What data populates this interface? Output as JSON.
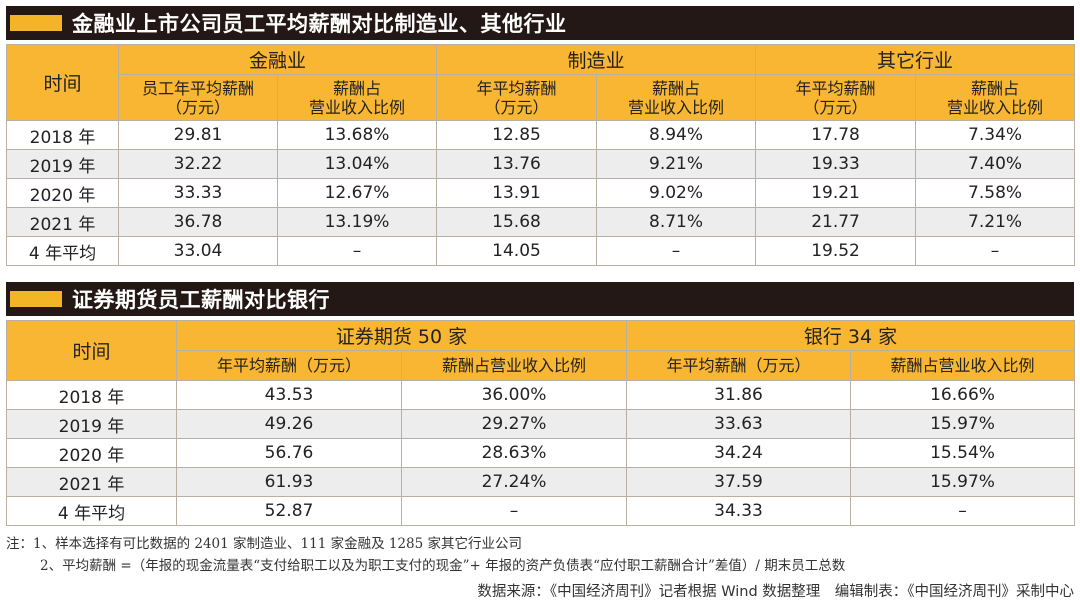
{
  "chart_data": [
    {
      "type": "table",
      "title": "金融业上市公司员工平均薪酬对比制造业、其他行业",
      "time_header": "时间",
      "groups": [
        {
          "name": "金融业",
          "columns": [
            "员工年平均薪酬\n（万元）",
            "薪酬占\n营业收入比例"
          ]
        },
        {
          "name": "制造业",
          "columns": [
            "年平均薪酬\n（万元）",
            "薪酬占\n营业收入比例"
          ]
        },
        {
          "name": "其它行业",
          "columns": [
            "年平均薪酬\n（万元）",
            "薪酬占\n营业收入比例"
          ]
        }
      ],
      "rows": [
        {
          "time": "2018 年",
          "values": [
            "29.81",
            "13.68%",
            "12.85",
            "8.94%",
            "17.78",
            "7.34%"
          ]
        },
        {
          "time": "2019 年",
          "values": [
            "32.22",
            "13.04%",
            "13.76",
            "9.21%",
            "19.33",
            "7.40%"
          ]
        },
        {
          "time": "2020 年",
          "values": [
            "33.33",
            "12.67%",
            "13.91",
            "9.02%",
            "19.21",
            "7.58%"
          ]
        },
        {
          "time": "2021 年",
          "values": [
            "36.78",
            "13.19%",
            "15.68",
            "8.71%",
            "21.77",
            "7.21%"
          ]
        },
        {
          "time": "4 年平均",
          "values": [
            "33.04",
            "–",
            "14.05",
            "–",
            "19.52",
            "–"
          ]
        }
      ]
    },
    {
      "type": "table",
      "title": "证券期货员工薪酬对比银行",
      "time_header": "时间",
      "groups": [
        {
          "name": "证券期货 50 家",
          "columns": [
            "年平均薪酬（万元）",
            "薪酬占营业收入比例"
          ]
        },
        {
          "name": "银行 34 家",
          "columns": [
            "年平均薪酬（万元）",
            "薪酬占营业收入比例"
          ]
        }
      ],
      "rows": [
        {
          "time": "2018 年",
          "values": [
            "43.53",
            "36.00%",
            "31.86",
            "16.66%"
          ]
        },
        {
          "time": "2019 年",
          "values": [
            "49.26",
            "29.27%",
            "33.63",
            "15.97%"
          ]
        },
        {
          "time": "2020 年",
          "values": [
            "56.76",
            "28.63%",
            "34.24",
            "15.54%"
          ]
        },
        {
          "time": "2021 年",
          "values": [
            "61.93",
            "27.24%",
            "37.59",
            "15.97%"
          ]
        },
        {
          "time": "4 年平均",
          "values": [
            "52.87",
            "–",
            "34.33",
            "–"
          ]
        }
      ]
    }
  ],
  "notes": {
    "line1": "注：1、样本选择有可比数据的 2401 家制造业、111 家金融及 1285 家其它行业公司",
    "line2": "2、平均薪酬 =（年报的现金流量表“支付给职工以及为职工支付的现金”+ 年报的资产负债表“应付职工薪酬合计”差值）/ 期末员工总数"
  },
  "source": "数据来源：《中国经济周刊》记者根据 Wind 数据整理　编辑制表：《中国经济周刊》采制中心",
  "colors": {
    "title_bg": "#231815",
    "accent": "#f3b526",
    "header_bg": "#f9b632",
    "alt_row": "#ededed"
  }
}
